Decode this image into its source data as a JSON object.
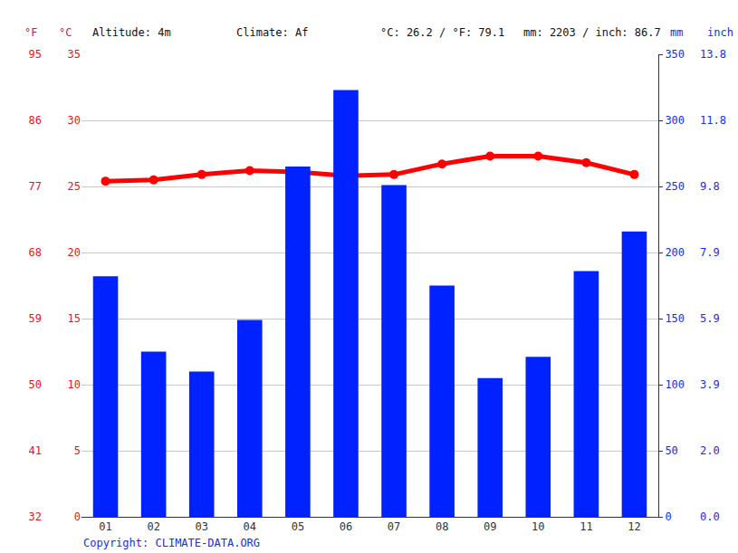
{
  "chart_data": {
    "type": "bar",
    "categories": [
      "01",
      "02",
      "03",
      "04",
      "05",
      "06",
      "07",
      "08",
      "09",
      "10",
      "11",
      "12"
    ],
    "series": [
      {
        "type": "bar",
        "axis": "y2",
        "color": "#0022ff",
        "values": [
          182,
          125,
          110,
          149,
          265,
          323,
          251,
          175,
          105,
          121,
          186,
          216
        ]
      },
      {
        "type": "line",
        "axis": "y",
        "color": "#ff0000",
        "marker": "circle",
        "line_style": "solid",
        "values": [
          25.4,
          25.5,
          25.9,
          26.2,
          26.1,
          25.8,
          25.9,
          26.7,
          27.3,
          27.3,
          26.8,
          25.9
        ]
      }
    ],
    "y_label": "°C",
    "ylim": [
      0,
      35
    ],
    "yticks": [
      0,
      5,
      10,
      15,
      20,
      25,
      30,
      35
    ],
    "y2_label": "mm",
    "y2lim": [
      0,
      350
    ],
    "y2ticks": [
      0,
      50,
      100,
      150,
      200,
      250,
      300,
      350
    ],
    "y3_label": "°F",
    "y3lim": [
      32,
      95
    ],
    "y3ticks": [
      32,
      41,
      50,
      59,
      68,
      77,
      86,
      95
    ],
    "y4_label": "inch",
    "y4lim": [
      0,
      13.78
    ],
    "y4ticks": [
      {
        "value": 0,
        "label": "0.0"
      },
      {
        "value": 1.97,
        "label": "2.0"
      },
      {
        "value": 3.94,
        "label": "3.9"
      },
      {
        "value": 5.91,
        "label": "5.9"
      },
      {
        "value": 7.87,
        "label": "7.9"
      },
      {
        "value": 9.84,
        "label": "9.8"
      },
      {
        "value": 11.81,
        "label": "11.8"
      },
      {
        "value": 13.78,
        "label": "13.8"
      }
    ],
    "annotations": [
      "Altitude: 4m",
      "Climate: Af",
      "°C: 26.2 / °F: 79.1",
      "mm: 2203 / inch: 86.7"
    ],
    "copyright": "Copyright: CLIMATE-DATA.ORG",
    "grid": true
  }
}
